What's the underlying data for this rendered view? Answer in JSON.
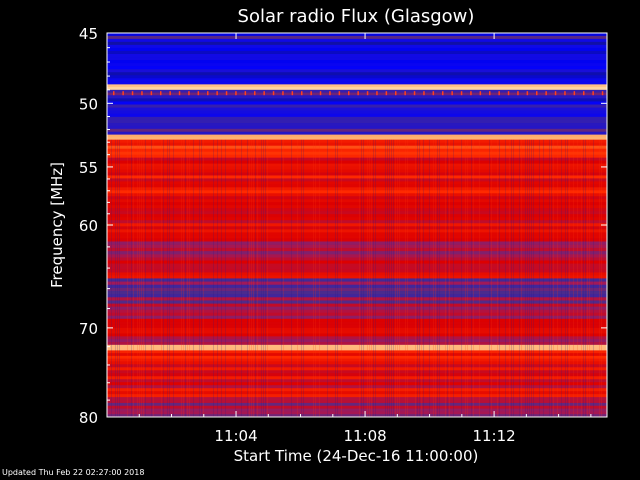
{
  "chart_data": {
    "type": "heatmap",
    "title": "Solar radio Flux (Glasgow)",
    "xlabel": "Start Time (24-Dec-16 11:00:00)",
    "ylabel": "Frequency [MHz]",
    "x_unit": "minutes after 11:00:00",
    "xlim": [
      0,
      15.5
    ],
    "ylim": [
      45,
      80
    ],
    "y_reversed": true,
    "y_scale": "log",
    "x_ticks": [
      {
        "value": 4,
        "label": "11:04"
      },
      {
        "value": 8,
        "label": "11:08"
      },
      {
        "value": 12,
        "label": "11:12"
      }
    ],
    "y_ticks": [
      {
        "value": 45,
        "label": "45"
      },
      {
        "value": 50,
        "label": "50"
      },
      {
        "value": 55,
        "label": "55"
      },
      {
        "value": 60,
        "label": "60"
      },
      {
        "value": 70,
        "label": "70"
      },
      {
        "value": 80,
        "label": "80"
      }
    ],
    "colormap": [
      "#1a1a6e",
      "#0000ff",
      "#4b2c8c",
      "#a0195a",
      "#dd0000",
      "#ff2a00",
      "#ff8030",
      "#ffeec0"
    ],
    "frequency_bands": [
      {
        "from": 45.0,
        "to": 45.6,
        "level": 0.22
      },
      {
        "from": 45.6,
        "to": 48.6,
        "level": 0.12
      },
      {
        "from": 48.6,
        "to": 49.0,
        "level": 0.96
      },
      {
        "from": 49.0,
        "to": 49.4,
        "level": 0.25
      },
      {
        "from": 49.4,
        "to": 51.5,
        "level": 0.15
      },
      {
        "from": 51.5,
        "to": 52.4,
        "level": 0.25
      },
      {
        "from": 52.4,
        "to": 52.8,
        "level": 0.93
      },
      {
        "from": 52.8,
        "to": 54.0,
        "level": 0.68
      },
      {
        "from": 54.0,
        "to": 58.5,
        "level": 0.62
      },
      {
        "from": 58.5,
        "to": 61.5,
        "level": 0.56
      },
      {
        "from": 61.5,
        "to": 63.0,
        "level": 0.4
      },
      {
        "from": 63.0,
        "to": 65.0,
        "level": 0.55
      },
      {
        "from": 65.0,
        "to": 67.5,
        "level": 0.36
      },
      {
        "from": 67.5,
        "to": 70.0,
        "level": 0.48
      },
      {
        "from": 70.0,
        "to": 71.8,
        "level": 0.52
      },
      {
        "from": 71.8,
        "to": 72.4,
        "level": 0.95
      },
      {
        "from": 72.4,
        "to": 73.6,
        "level": 0.66
      },
      {
        "from": 73.6,
        "to": 78.0,
        "level": 0.58
      },
      {
        "from": 78.0,
        "to": 80.0,
        "level": 0.4
      }
    ]
  },
  "footer": "Updated Thu Feb 22 02:27:00 2018"
}
